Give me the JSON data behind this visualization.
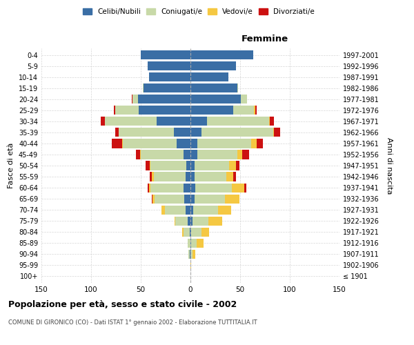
{
  "age_groups": [
    "100+",
    "95-99",
    "90-94",
    "85-89",
    "80-84",
    "75-79",
    "70-74",
    "65-69",
    "60-64",
    "55-59",
    "50-54",
    "45-49",
    "40-44",
    "35-39",
    "30-34",
    "25-29",
    "20-24",
    "15-19",
    "10-14",
    "5-9",
    "0-4"
  ],
  "birth_years": [
    "≤ 1901",
    "1902-1906",
    "1907-1911",
    "1912-1916",
    "1917-1921",
    "1922-1926",
    "1927-1931",
    "1932-1936",
    "1937-1941",
    "1942-1946",
    "1947-1951",
    "1952-1956",
    "1957-1961",
    "1962-1966",
    "1967-1971",
    "1972-1976",
    "1977-1981",
    "1982-1986",
    "1987-1991",
    "1992-1996",
    "1997-2001"
  ],
  "males": {
    "celibi": [
      0,
      0,
      1,
      0,
      1,
      3,
      5,
      6,
      7,
      5,
      4,
      7,
      14,
      17,
      34,
      52,
      53,
      47,
      42,
      43,
      50
    ],
    "coniugati": [
      0,
      0,
      1,
      3,
      6,
      12,
      21,
      30,
      33,
      32,
      36,
      43,
      54,
      55,
      52,
      24,
      5,
      1,
      0,
      0,
      0
    ],
    "vedovi": [
      0,
      0,
      0,
      0,
      1,
      1,
      3,
      2,
      2,
      2,
      1,
      1,
      1,
      0,
      0,
      0,
      0,
      0,
      0,
      0,
      0
    ],
    "divorziati": [
      0,
      0,
      0,
      0,
      0,
      0,
      0,
      1,
      1,
      2,
      4,
      4,
      10,
      4,
      4,
      1,
      1,
      0,
      0,
      0,
      0
    ]
  },
  "females": {
    "nubili": [
      0,
      0,
      0,
      1,
      1,
      2,
      3,
      4,
      5,
      4,
      4,
      7,
      7,
      11,
      17,
      43,
      51,
      47,
      38,
      46,
      63
    ],
    "coniugate": [
      0,
      0,
      2,
      5,
      10,
      16,
      25,
      31,
      37,
      32,
      35,
      40,
      54,
      72,
      62,
      21,
      6,
      1,
      0,
      0,
      0
    ],
    "vedove": [
      0,
      1,
      3,
      7,
      8,
      14,
      13,
      14,
      12,
      7,
      7,
      5,
      6,
      1,
      1,
      1,
      0,
      0,
      0,
      0,
      0
    ],
    "divorziate": [
      0,
      0,
      0,
      0,
      0,
      0,
      0,
      0,
      2,
      3,
      3,
      7,
      6,
      6,
      4,
      2,
      0,
      0,
      0,
      0,
      0
    ]
  },
  "colors": {
    "celibi": "#3a6ea5",
    "coniugati": "#c8d9a8",
    "vedovi": "#f5c842",
    "divorziati": "#cc1111"
  },
  "title": "Popolazione per età, sesso e stato civile - 2002",
  "subtitle": "COMUNE DI GIRONICO (CO) - Dati ISTAT 1° gennaio 2002 - Elaborazione TUTTITALIA.IT",
  "xlabel_right": "Femmine",
  "ylabel_left": "Fasce di età",
  "ylabel_right": "Anni di nascita",
  "xlim": 150,
  "background_color": "#ffffff",
  "grid_color": "#cccccc"
}
